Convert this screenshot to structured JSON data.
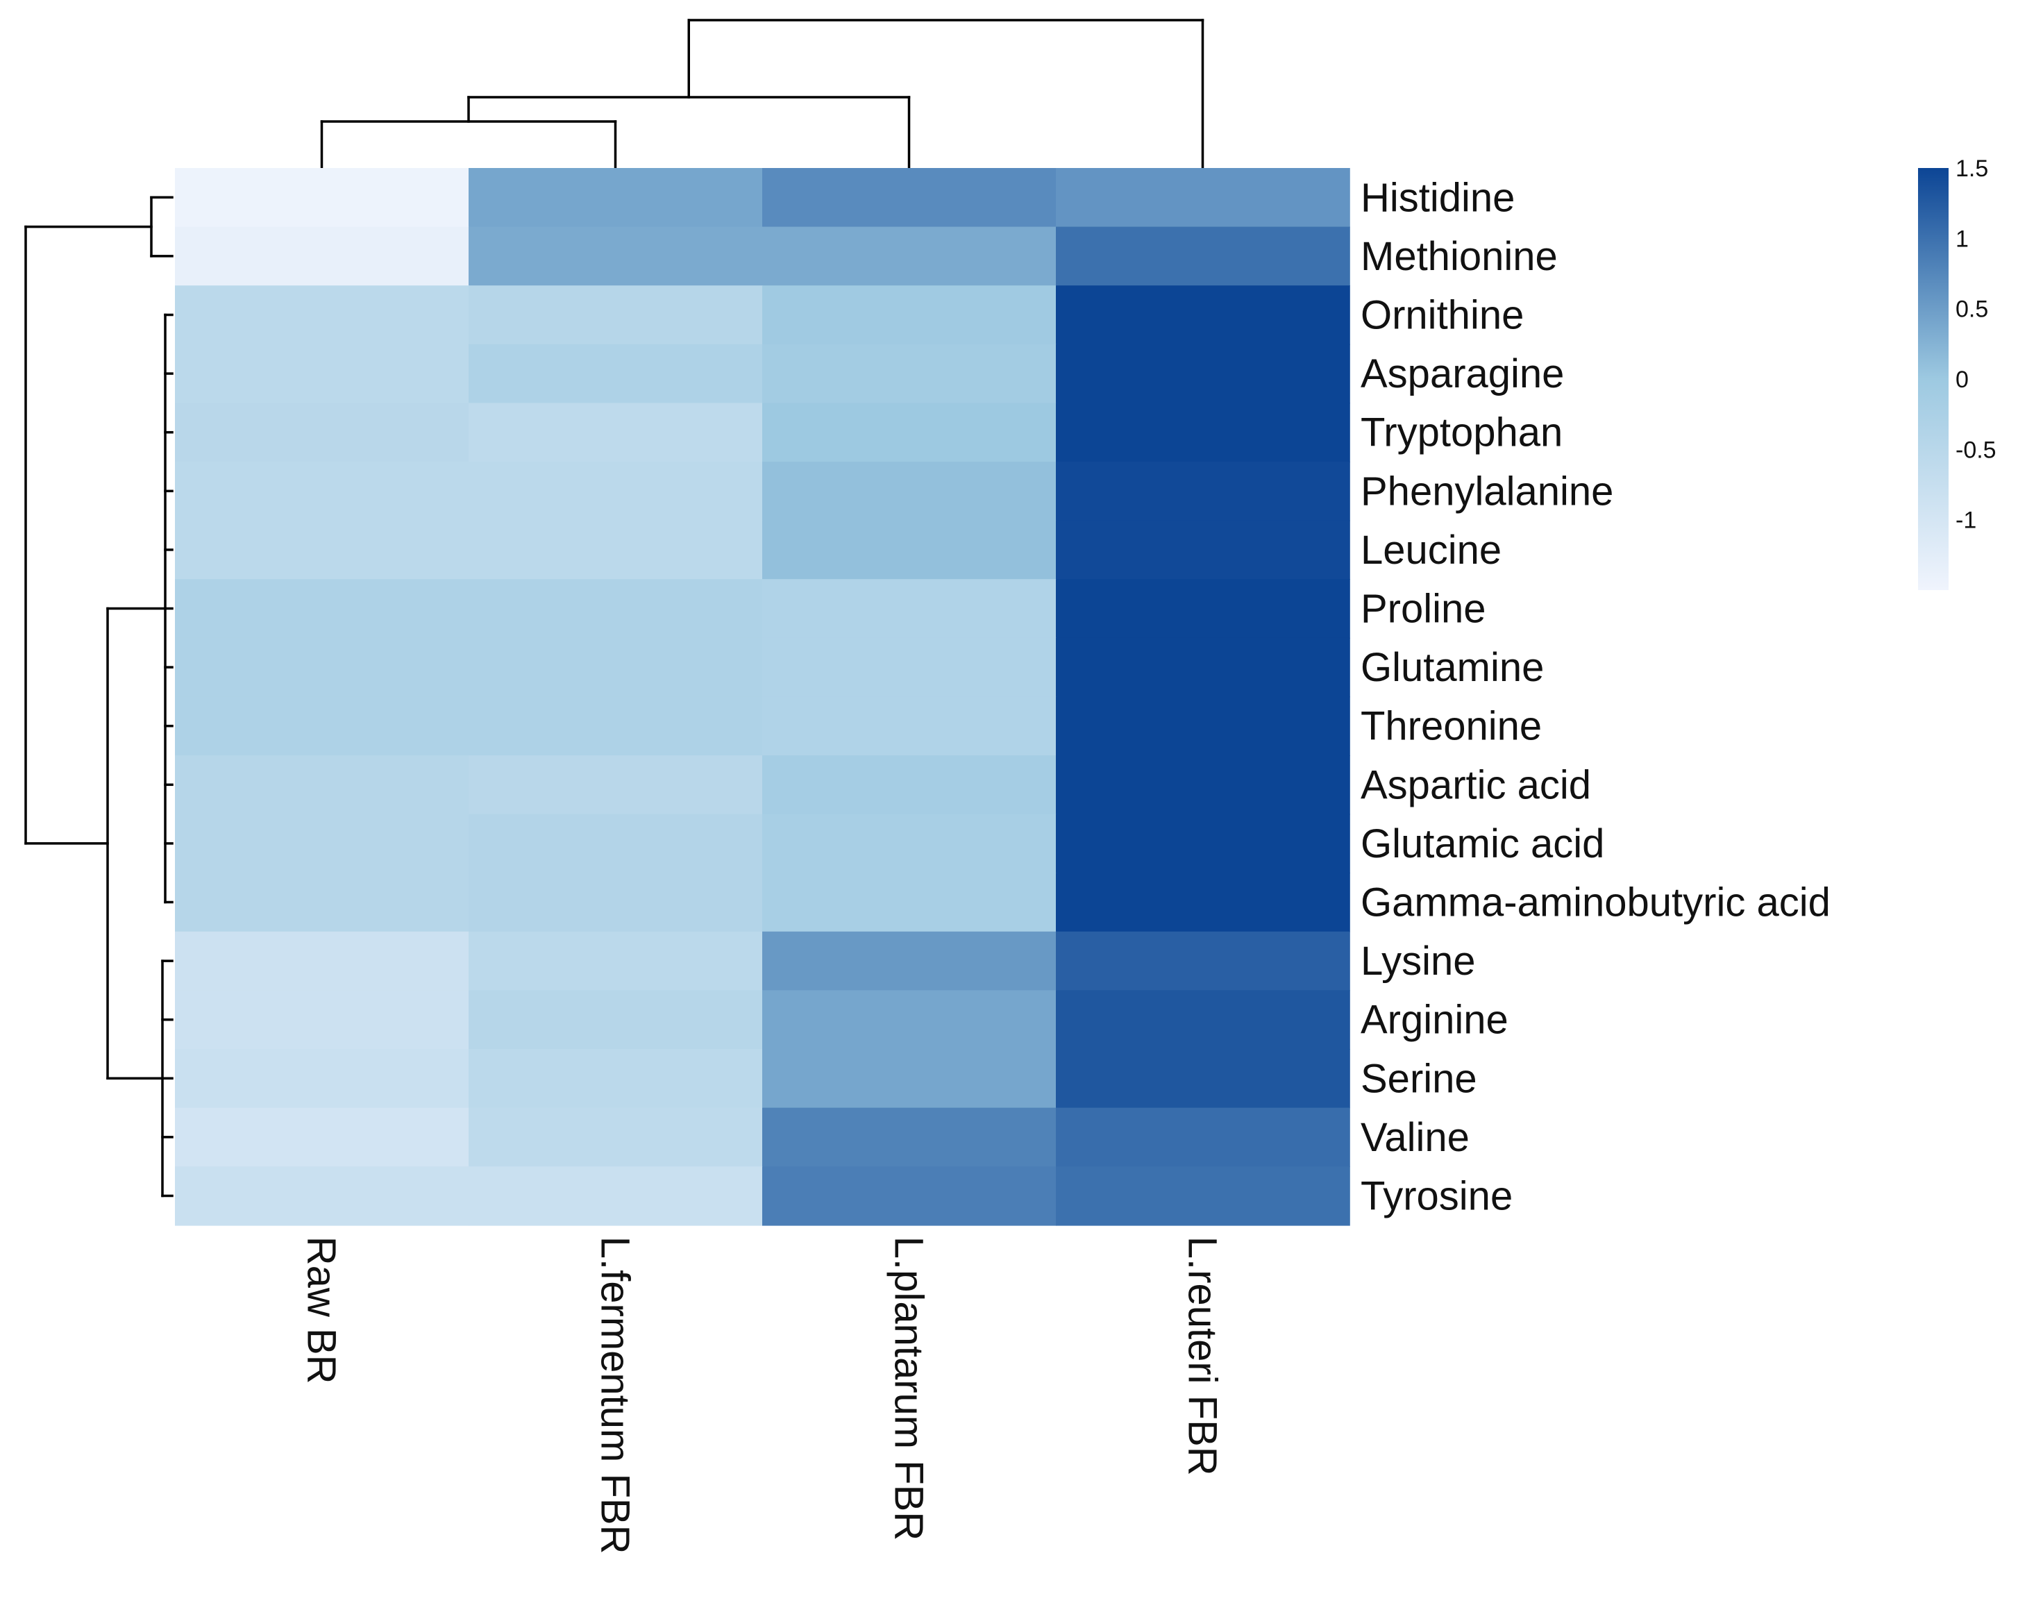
{
  "chart_data": {
    "type": "heatmap",
    "title": "",
    "xlabel": "",
    "ylabel": "",
    "columns": [
      "Raw BR",
      "L.fermentum FBR",
      "L.plantarum FBR",
      "L.reuteri FBR"
    ],
    "rows": [
      "Histidine",
      "Methionine",
      "Ornithine",
      "Asparagine",
      "Tryptophan",
      "Phenylalanine",
      "Leucine",
      "Proline",
      "Glutamine",
      "Threonine",
      "Aspartic acid",
      "Glutamic acid",
      "Gamma-aminobutyric acid",
      "Lysine",
      "Arginine",
      "Serine",
      "Valine",
      "Tyrosine"
    ],
    "values": [
      [
        -1.45,
        0.4,
        0.7,
        0.6
      ],
      [
        -1.35,
        0.35,
        0.35,
        1.0
      ],
      [
        -0.55,
        -0.45,
        -0.05,
        1.5
      ],
      [
        -0.55,
        -0.3,
        -0.1,
        1.5
      ],
      [
        -0.5,
        -0.6,
        0.0,
        1.5
      ],
      [
        -0.55,
        -0.55,
        0.1,
        1.45
      ],
      [
        -0.55,
        -0.55,
        0.1,
        1.45
      ],
      [
        -0.3,
        -0.3,
        -0.35,
        1.5
      ],
      [
        -0.3,
        -0.3,
        -0.35,
        1.5
      ],
      [
        -0.3,
        -0.3,
        -0.35,
        1.5
      ],
      [
        -0.45,
        -0.5,
        -0.15,
        1.5
      ],
      [
        -0.45,
        -0.4,
        -0.2,
        1.5
      ],
      [
        -0.45,
        -0.4,
        -0.2,
        1.5
      ],
      [
        -0.85,
        -0.55,
        0.55,
        1.2
      ],
      [
        -0.85,
        -0.45,
        0.4,
        1.3
      ],
      [
        -0.8,
        -0.55,
        0.4,
        1.3
      ],
      [
        -0.95,
        -0.6,
        0.8,
        1.05
      ],
      [
        -0.8,
        -0.8,
        0.85,
        1.0
      ]
    ],
    "color_scale": {
      "min": -1.5,
      "max": 1.5,
      "low_color": "#f0f4fd",
      "mid_color": "#9dc9e1",
      "high_color": "#0c4595",
      "ticks": [
        "1.5",
        "1",
        "0.5",
        "0",
        "-0.5",
        "-1"
      ]
    },
    "dendrogram_cols": [
      [
        0,
        1
      ],
      [
        2
      ],
      [
        3
      ]
    ],
    "dendrogram_rows": [
      [
        0,
        1
      ],
      [
        2,
        12
      ],
      [
        13,
        17
      ]
    ]
  }
}
